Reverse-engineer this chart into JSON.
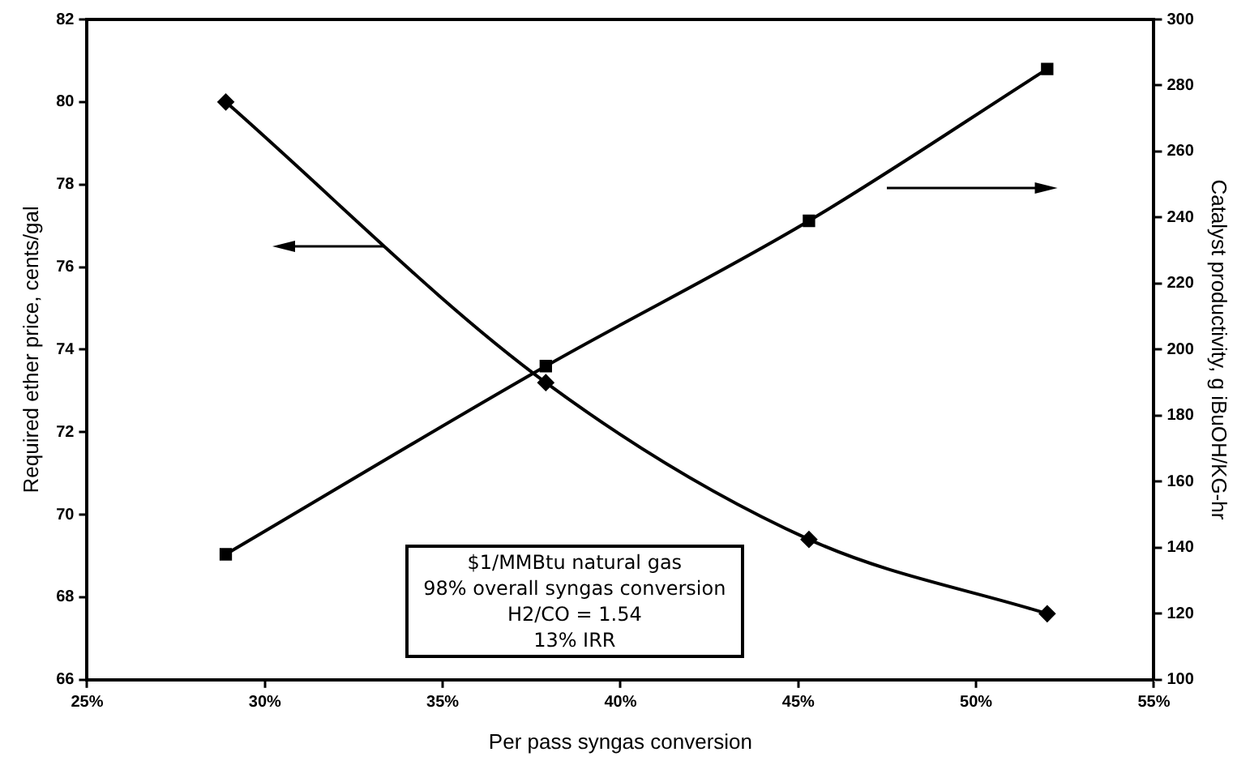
{
  "chart_data": {
    "type": "line",
    "xlabel": "Per pass syngas conversion",
    "ylabel": "Required ether price, cents/gal",
    "y2label": "Catalyst productivity, g iBuOH/KG-hr",
    "x": [
      28.9,
      37.9,
      45.3,
      52.0
    ],
    "series": [
      {
        "color": "#000000",
        "marker": "diamond",
        "values": [
          80.0,
          73.2,
          69.4,
          67.6
        ]
      },
      {
        "color": "#000000",
        "marker": "square",
        "axis": "y2",
        "values": [
          138,
          195,
          239,
          285
        ]
      }
    ],
    "xlim": [
      25,
      55
    ],
    "xticks": [
      {
        "value": 25,
        "label": "25%"
      },
      {
        "value": 30,
        "label": "30%"
      },
      {
        "value": 35,
        "label": "35%"
      },
      {
        "value": 40,
        "label": "40%"
      },
      {
        "value": 45,
        "label": "45%"
      },
      {
        "value": 50,
        "label": "50%"
      },
      {
        "value": 55,
        "label": "55%"
      }
    ],
    "ylim": [
      66,
      82
    ],
    "yticks": [
      66,
      68,
      70,
      72,
      74,
      76,
      78,
      80,
      82
    ],
    "y2lim": [
      100,
      300
    ],
    "y2ticks": [
      100,
      120,
      140,
      160,
      180,
      200,
      220,
      240,
      260,
      280,
      300
    ],
    "annotations": [
      "$1/MMBtu natural gas",
      "98% overall syngas conversion",
      "H2/CO = 1.54",
      "13% IRR"
    ],
    "grid": false,
    "legend": false
  }
}
